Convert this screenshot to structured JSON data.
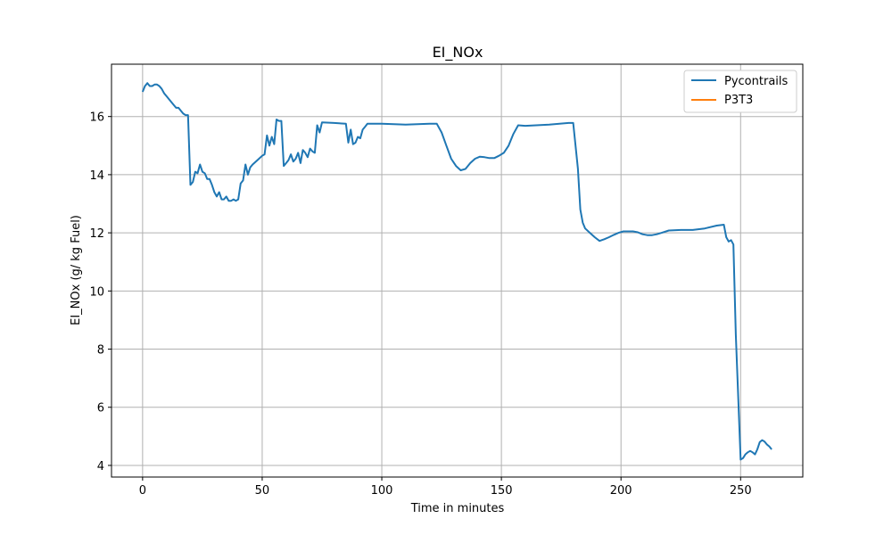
{
  "chart_data": {
    "type": "line",
    "title": "EI_NOx",
    "xlabel": "Time in minutes",
    "ylabel": "EI_NOx (g/ kg Fuel)",
    "xlim": [
      -13,
      276
    ],
    "ylim": [
      3.6,
      17.8
    ],
    "xticks": [
      0,
      50,
      100,
      150,
      200,
      250
    ],
    "yticks": [
      4,
      6,
      8,
      10,
      12,
      14,
      16
    ],
    "grid": true,
    "legend_position": "top-right",
    "series": [
      {
        "name": "Pycontrails",
        "color": "#1f77b4",
        "x": [
          0,
          1,
          2,
          3,
          4,
          5,
          6,
          7,
          8,
          9,
          10,
          12,
          14,
          15,
          16,
          17,
          18,
          19,
          20,
          21,
          22,
          23,
          24,
          25,
          26,
          27,
          28,
          29,
          30,
          31,
          32,
          33,
          34,
          35,
          36,
          37,
          38,
          39,
          40,
          41,
          42,
          43,
          44,
          45,
          46,
          48,
          50,
          51,
          52,
          53,
          54,
          55,
          56,
          57,
          58,
          59,
          60,
          61,
          62,
          63,
          64,
          65,
          66,
          67,
          68,
          69,
          70,
          71,
          72,
          73,
          74,
          75,
          80,
          85,
          86,
          87,
          88,
          89,
          90,
          91,
          92,
          93,
          94,
          95,
          100,
          110,
          120,
          123,
          125,
          127,
          129,
          131,
          133,
          135,
          137,
          139,
          141,
          143,
          145,
          147,
          149,
          151,
          153,
          155,
          157,
          160,
          170,
          178,
          180,
          182,
          183,
          184,
          185,
          187,
          189,
          191,
          193,
          195,
          197,
          199,
          201,
          203,
          205,
          207,
          209,
          211,
          213,
          215,
          217,
          220,
          225,
          230,
          235,
          240,
          243,
          244,
          245,
          246,
          247,
          248,
          250,
          251,
          252,
          253,
          254,
          255,
          256,
          257,
          258,
          259,
          260,
          261,
          262,
          263
        ],
        "values": [
          16.85,
          17.05,
          17.15,
          17.05,
          17.05,
          17.1,
          17.1,
          17.05,
          16.95,
          16.8,
          16.7,
          16.5,
          16.3,
          16.3,
          16.2,
          16.1,
          16.05,
          16.05,
          13.65,
          13.75,
          14.1,
          14.05,
          14.35,
          14.1,
          14.05,
          13.85,
          13.85,
          13.65,
          13.4,
          13.25,
          13.4,
          13.15,
          13.15,
          13.25,
          13.1,
          13.1,
          13.15,
          13.1,
          13.15,
          13.7,
          13.8,
          14.35,
          14.0,
          14.25,
          14.35,
          14.5,
          14.65,
          14.7,
          15.35,
          15.0,
          15.3,
          15.05,
          15.9,
          15.85,
          15.85,
          14.3,
          14.4,
          14.5,
          14.7,
          14.45,
          14.55,
          14.75,
          14.4,
          14.85,
          14.75,
          14.6,
          14.9,
          14.8,
          14.75,
          15.7,
          15.45,
          15.8,
          15.78,
          15.75,
          15.1,
          15.55,
          15.05,
          15.1,
          15.3,
          15.25,
          15.55,
          15.65,
          15.75,
          15.75,
          15.75,
          15.72,
          15.75,
          15.75,
          15.45,
          15.0,
          14.55,
          14.3,
          14.15,
          14.2,
          14.4,
          14.55,
          14.62,
          14.6,
          14.57,
          14.57,
          14.65,
          14.75,
          15.0,
          15.4,
          15.7,
          15.68,
          15.72,
          15.78,
          15.78,
          14.2,
          12.8,
          12.35,
          12.15,
          12.0,
          11.85,
          11.72,
          11.78,
          11.85,
          11.93,
          12.0,
          12.05,
          12.05,
          12.05,
          12.02,
          11.95,
          11.92,
          11.92,
          11.95,
          12.0,
          12.08,
          12.1,
          12.1,
          12.15,
          12.25,
          12.28,
          11.85,
          11.7,
          11.75,
          11.6,
          8.5,
          4.2,
          4.25,
          4.38,
          4.45,
          4.5,
          4.45,
          4.38,
          4.55,
          4.8,
          4.87,
          4.82,
          4.72,
          4.65,
          4.55
        ]
      },
      {
        "name": "P3T3",
        "color": "#ff7f0e",
        "x": [],
        "values": []
      }
    ]
  }
}
